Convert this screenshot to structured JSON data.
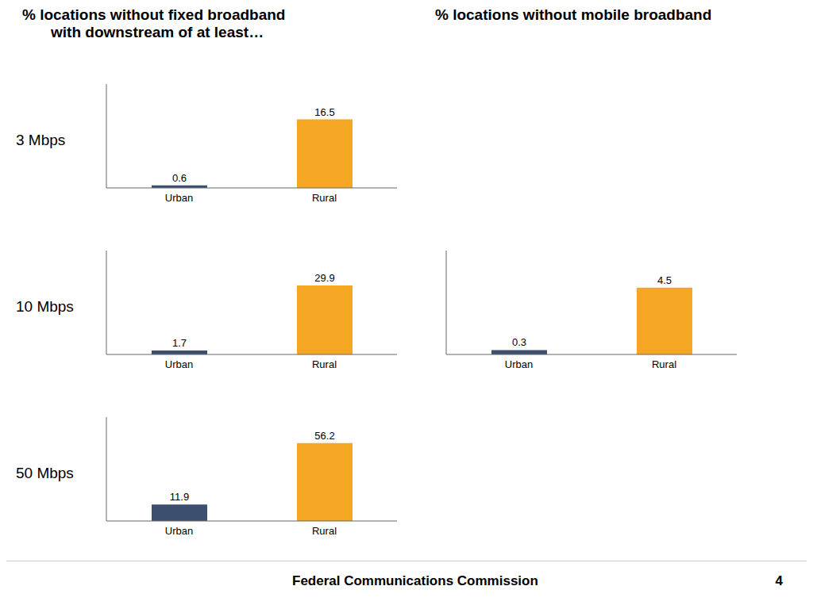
{
  "chart_data": [
    {
      "type": "bar",
      "title": "% locations without fixed broadband",
      "subtitle": "with downstream of at least…",
      "ylabel": "3 Mbps",
      "categories": [
        "Urban",
        "Rural"
      ],
      "values": [
        0.6,
        16.5
      ],
      "colors": [
        "#3d4f6e",
        "#f5a623"
      ],
      "ylim": [
        0,
        25
      ],
      "data_labels": true,
      "tick_labels": "x",
      "grid": false
    },
    {
      "type": "bar",
      "ylabel": "10 Mbps",
      "categories": [
        "Urban",
        "Rural"
      ],
      "values": [
        1.7,
        29.9
      ],
      "colors": [
        "#3d4f6e",
        "#f5a623"
      ],
      "ylim": [
        0,
        45
      ],
      "data_labels": true,
      "tick_labels": "x",
      "grid": false
    },
    {
      "type": "bar",
      "ylabel": "50 Mbps",
      "categories": [
        "Urban",
        "Rural"
      ],
      "values": [
        11.9,
        56.2
      ],
      "colors": [
        "#3d4f6e",
        "#f5a623"
      ],
      "ylim": [
        0,
        75
      ],
      "data_labels": true,
      "tick_labels": "x",
      "grid": false
    },
    {
      "type": "bar",
      "title": "% locations without mobile broadband",
      "categories": [
        "Urban",
        "Rural"
      ],
      "values": [
        0.3,
        4.5
      ],
      "colors": [
        "#3d4f6e",
        "#f5a623"
      ],
      "ylim": [
        0,
        7
      ],
      "data_labels": true,
      "tick_labels": "x",
      "grid": false
    }
  ],
  "annotations": [
    "Federal Communications Commission",
    "4"
  ]
}
